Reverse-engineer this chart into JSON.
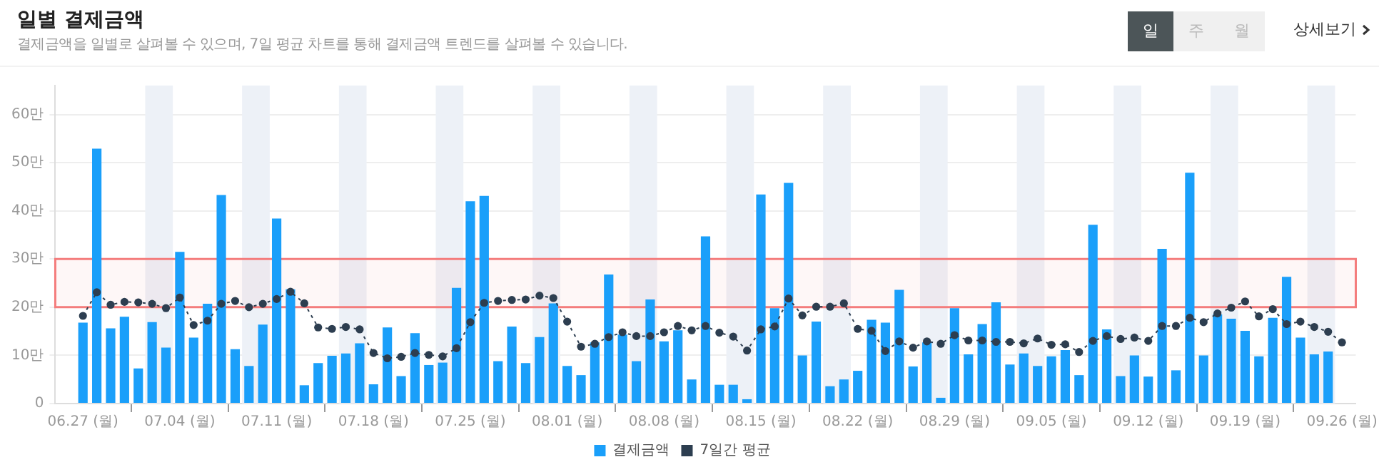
{
  "chart_data": {
    "type": "bar",
    "title": "일별 결제금액",
    "subtitle": "결제금액을 일별로 살펴볼 수 있으며, 7일 평균 차트를 통해 결제금액 트렌드를 살펴볼 수 있습니다.",
    "annotations": [
      "일",
      "주",
      "월",
      "상세보기"
    ],
    "x": [
      "--06-27",
      "--06-28",
      "--06-29",
      "--06-30",
      "--07-01",
      "--07-02",
      "--07-03",
      "--07-04",
      "--07-05",
      "--07-06",
      "--07-07",
      "--07-08",
      "--07-09",
      "--07-10",
      "--07-11",
      "--07-12",
      "--07-13",
      "--07-14",
      "--07-15",
      "--07-16",
      "--07-17",
      "--07-18",
      "--07-19",
      "--07-20",
      "--07-21",
      "--07-22",
      "--07-23",
      "--07-24",
      "--07-25",
      "--07-26",
      "--07-27",
      "--07-28",
      "--07-29",
      "--07-30",
      "--07-31",
      "--08-01",
      "--08-02",
      "--08-03",
      "--08-04",
      "--08-05",
      "--08-06",
      "--08-07",
      "--08-08",
      "--08-09",
      "--08-10",
      "--08-11",
      "--08-12",
      "--08-13",
      "--08-14",
      "--08-15",
      "--08-16",
      "--08-17",
      "--08-18",
      "--08-19",
      "--08-20",
      "--08-21",
      "--08-22",
      "--08-23",
      "--08-24",
      "--08-25",
      "--08-26",
      "--08-27",
      "--08-28",
      "--08-29",
      "--08-30",
      "--08-31",
      "--09-01",
      "--09-02",
      "--09-03",
      "--09-04",
      "--09-05",
      "--09-06",
      "--09-07",
      "--09-08",
      "--09-09",
      "--09-10",
      "--09-11",
      "--09-12",
      "--09-13",
      "--09-14",
      "--09-15",
      "--09-16",
      "--09-17",
      "--09-18",
      "--09-19",
      "--09-20",
      "--09-21",
      "--09-22",
      "--09-23",
      "--09-24",
      "--09-25",
      "--09-26"
    ],
    "series": [
      {
        "name": "결제금액",
        "color": "#1a9ffa",
        "values": [
          16.8,
          52.9,
          15.6,
          18.0,
          7.3,
          16.9,
          11.6,
          31.5,
          13.7,
          20.7,
          43.3,
          11.3,
          7.8,
          16.4,
          38.4,
          23.7,
          3.8,
          8.4,
          9.9,
          10.4,
          12.5,
          4.0,
          15.8,
          5.7,
          14.6,
          8.0,
          8.5,
          24.0,
          42.0,
          43.1,
          8.8,
          16.0,
          8.4,
          13.8,
          20.8,
          7.8,
          5.9,
          12.7,
          26.8,
          14.3,
          8.8,
          21.6,
          12.9,
          15.2,
          5.0,
          34.7,
          3.9,
          3.9,
          0.9,
          43.4,
          19.8,
          45.8,
          10.0,
          17.0,
          3.6,
          5.0,
          6.8,
          17.4,
          16.8,
          23.6,
          7.7,
          12.7,
          1.2,
          19.8,
          10.2,
          16.5,
          21.0,
          8.1,
          10.4,
          7.8,
          9.8,
          11.1,
          5.9,
          37.1,
          15.4,
          5.7,
          10.0,
          5.6,
          32.1,
          6.9,
          47.9,
          10.0,
          18.5,
          17.6,
          15.1,
          9.8,
          17.8,
          26.3,
          13.7,
          10.2,
          10.8,
          null
        ]
      },
      {
        "name": "7일간 평균",
        "type": "line",
        "color": "#2d3e50",
        "marker": "circle",
        "line_style": "dotted",
        "values": [
          18.2,
          23.1,
          20.5,
          21.1,
          21.0,
          20.7,
          19.8,
          22.0,
          16.3,
          17.2,
          20.7,
          21.3,
          20.0,
          20.7,
          21.7,
          23.2,
          20.8,
          15.8,
          15.5,
          15.9,
          15.4,
          10.5,
          9.4,
          9.7,
          10.5,
          10.1,
          9.8,
          11.5,
          16.9,
          20.9,
          21.3,
          21.5,
          21.6,
          22.4,
          21.9,
          17.0,
          11.8,
          12.4,
          13.8,
          14.8,
          14.0,
          14.0,
          14.8,
          16.1,
          15.2,
          16.1,
          14.7,
          13.9,
          11.0,
          15.4,
          16.0,
          21.8,
          18.3,
          20.1,
          20.1,
          20.8,
          15.5,
          15.1,
          10.9,
          12.9,
          11.6,
          12.9,
          12.4,
          14.2,
          13.1,
          13.1,
          12.8,
          12.8,
          12.5,
          13.5,
          12.2,
          12.3,
          10.7,
          13.0,
          14.0,
          13.4,
          13.7,
          13.0,
          16.1,
          16.1,
          17.8,
          16.9,
          18.7,
          19.9,
          21.2,
          18.1,
          19.6,
          16.5,
          17.0,
          15.9,
          14.9,
          12.7
        ]
      }
    ],
    "xlim": [
      "--06-25",
      "--09-27"
    ],
    "xticks": [
      {
        "value": "--06-27",
        "label": "06.27 (월)"
      },
      {
        "value": "--07-04",
        "label": "07.04 (월)"
      },
      {
        "value": "--07-11",
        "label": "07.11 (월)"
      },
      {
        "value": "--07-18",
        "label": "07.18 (월)"
      },
      {
        "value": "--07-25",
        "label": "07.25 (월)"
      },
      {
        "value": "--08-01",
        "label": "08.01 (월)"
      },
      {
        "value": "--08-08",
        "label": "08.08 (월)"
      },
      {
        "value": "--08-15",
        "label": "08.15 (월)"
      },
      {
        "value": "--08-22",
        "label": "08.22 (월)"
      },
      {
        "value": "--08-29",
        "label": "08.29 (월)"
      },
      {
        "value": "--09-05",
        "label": "09.05 (월)"
      },
      {
        "value": "--09-12",
        "label": "09.12 (월)"
      },
      {
        "value": "--09-19",
        "label": "09.19 (월)"
      },
      {
        "value": "--09-26",
        "label": "09.26 (월)"
      }
    ],
    "ylim": [
      0,
      66
    ],
    "yticks": [
      0,
      {
        "value": 10,
        "label": "10만"
      },
      {
        "value": 20,
        "label": "20만"
      },
      {
        "value": 30,
        "label": "30만"
      },
      {
        "value": 40,
        "label": "40만"
      },
      {
        "value": 50,
        "label": "50만"
      },
      {
        "value": 60,
        "label": "60만"
      }
    ],
    "bands": [
      {
        "axis": "x",
        "from": "--07-01T12:00",
        "to": "--07-03T12:00",
        "color": "#edf1f7"
      },
      {
        "axis": "x",
        "from": "--07-08T12:00",
        "to": "--07-10T12:00",
        "color": "#edf1f7"
      },
      {
        "axis": "x",
        "from": "--07-15T12:00",
        "to": "--07-17T12:00",
        "color": "#edf1f7"
      },
      {
        "axis": "x",
        "from": "--07-22T12:00",
        "to": "--07-24T12:00",
        "color": "#edf1f7"
      },
      {
        "axis": "x",
        "from": "--07-29T12:00",
        "to": "--07-31T12:00",
        "color": "#edf1f7"
      },
      {
        "axis": "x",
        "from": "--08-05T12:00",
        "to": "--08-07T12:00",
        "color": "#edf1f7"
      },
      {
        "axis": "x",
        "from": "--08-12T12:00",
        "to": "--08-14T12:00",
        "color": "#edf1f7"
      },
      {
        "axis": "x",
        "from": "--08-19T12:00",
        "to": "--08-21T12:00",
        "color": "#edf1f7"
      },
      {
        "axis": "x",
        "from": "--08-26T12:00",
        "to": "--08-28T12:00",
        "color": "#edf1f7"
      },
      {
        "axis": "x",
        "from": "--09-02T12:00",
        "to": "--09-04T12:00",
        "color": "#edf1f7"
      },
      {
        "axis": "x",
        "from": "--09-09T12:00",
        "to": "--09-11T12:00",
        "color": "#edf1f7"
      },
      {
        "axis": "x",
        "from": "--09-16T12:00",
        "to": "--09-18T12:00",
        "color": "#edf1f7"
      },
      {
        "axis": "x",
        "from": "--09-23T12:00",
        "to": "--09-25T12:00",
        "color": "#edf1f7"
      },
      {
        "axis": "y",
        "from": 20,
        "to": 30,
        "color": "#f47c7c"
      }
    ],
    "grid": "y",
    "legend": "bottom"
  }
}
